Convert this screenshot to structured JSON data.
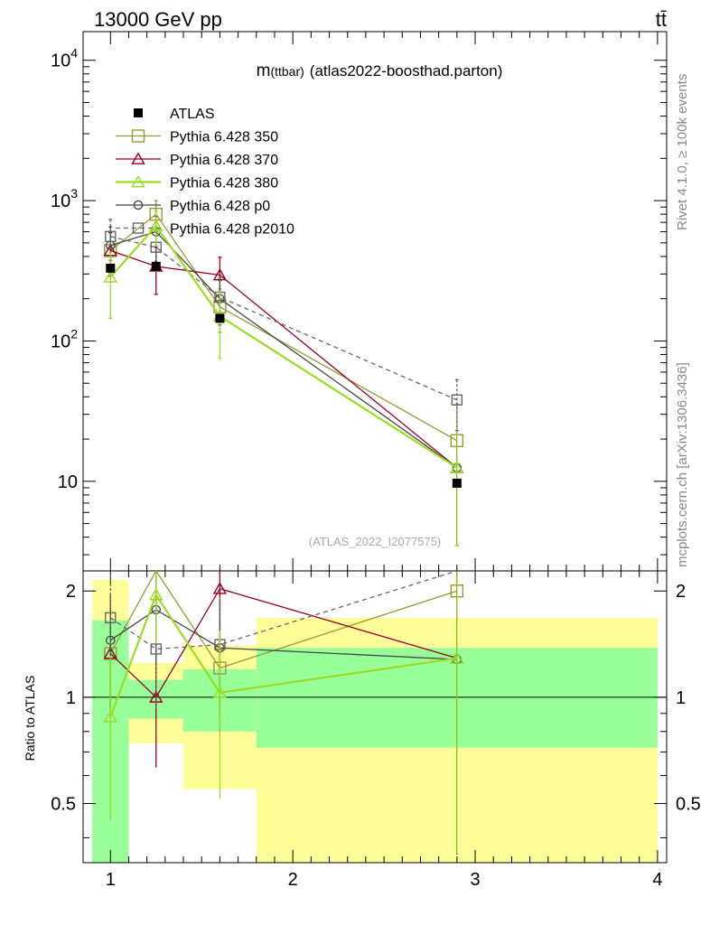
{
  "header": {
    "energy_label": "13000 GeV pp",
    "process_label": "tt̄"
  },
  "side_text": {
    "rivet": "Rivet 4.1.0, ≥ 100k events",
    "mcplots": "mcplots.cern.ch [arXiv:1306.3436]"
  },
  "chart_data": {
    "type": "line",
    "title": "m(ttbar) (atlas2022-boosthad.parton)",
    "title_main": "m",
    "title_sub": "(ttbar)",
    "title_rest": "(atlas2022-boosthad.parton)",
    "analysis_label": "(ATLAS_2022_I2077575)",
    "yscale": "log",
    "xlim": [
      0.85,
      4.05
    ],
    "ylim": [
      2.3,
      16000
    ],
    "x_ticks": [
      1,
      2,
      3,
      4
    ],
    "x_tick_labels": [
      "1",
      "2",
      "3",
      "4"
    ],
    "y_ticks": [
      10,
      100,
      1000,
      10000
    ],
    "y_tick_labels": [
      "10",
      "10",
      "10",
      "10"
    ],
    "y_tick_exponents": [
      "",
      "2",
      "3",
      "4"
    ],
    "ratio": {
      "ylabel": "Ratio to ATLAS",
      "ylim": [
        0.34,
        2.28
      ],
      "y_ticks": [
        0.5,
        1,
        2
      ],
      "y_tick_labels": [
        "0.5",
        "1",
        "2"
      ],
      "bands": [
        {
          "x0": 0.9,
          "x1": 1.1,
          "green": [
            0.3,
            1.65
          ],
          "yellow": [
            0.3,
            2.15
          ]
        },
        {
          "x0": 1.1,
          "x1": 1.4,
          "green": [
            0.87,
            1.12
          ],
          "yellow": [
            0.74,
            1.25
          ]
        },
        {
          "x0": 1.4,
          "x1": 1.8,
          "green": [
            0.8,
            1.2
          ],
          "yellow": [
            0.55,
            1.4
          ]
        },
        {
          "x0": 1.8,
          "x1": 4.0,
          "green": [
            0.72,
            1.38
          ],
          "yellow": [
            0.3,
            1.68
          ]
        }
      ]
    },
    "legend": {
      "position": "top-left"
    },
    "series": [
      {
        "name": "ATLAS",
        "marker": "square-filled",
        "color": "#000000",
        "dashed": false,
        "x": [
          1.0,
          1.25,
          1.6,
          2.9
        ],
        "y": [
          330,
          340,
          145,
          9.7
        ],
        "err_lo": [
          0,
          0,
          0,
          0
        ],
        "err_hi": [
          0,
          0,
          0,
          0
        ],
        "ratio": [
          1,
          1,
          1,
          1
        ]
      },
      {
        "name": "Pythia 6.428 350",
        "marker": "square-open",
        "color": "#999933",
        "dashed": false,
        "x": [
          1.0,
          1.25,
          1.6,
          2.9
        ],
        "y": [
          440,
          800,
          175,
          19.5
        ],
        "err_lo": [
          150,
          200,
          60,
          16
        ],
        "err_hi": [
          150,
          200,
          60,
          16
        ],
        "ratio": [
          1.33,
          2.35,
          1.21,
          2.0
        ]
      },
      {
        "name": "Pythia 6.428 370",
        "marker": "triangle-open",
        "color": "#990022",
        "dashed": false,
        "x": [
          1.0,
          1.25,
          1.6,
          2.9
        ],
        "y": [
          440,
          340,
          295,
          12.5
        ],
        "err_lo": [
          150,
          125,
          100,
          9
        ],
        "err_hi": [
          150,
          125,
          100,
          9
        ],
        "ratio": [
          1.33,
          1.0,
          2.03,
          1.29
        ]
      },
      {
        "name": "Pythia 6.428 380",
        "marker": "triangle-open",
        "color": "#99dd22",
        "dashed": false,
        "x": [
          1.0,
          1.25,
          1.6,
          2.9
        ],
        "y": [
          285,
          660,
          150,
          12.5
        ],
        "err_lo": [
          140,
          180,
          75,
          9
        ],
        "err_hi": [
          140,
          180,
          75,
          9
        ],
        "ratio": [
          0.88,
          1.95,
          1.03,
          1.29
        ]
      },
      {
        "name": "Pythia 6.428 p0",
        "marker": "circle-open",
        "color": "#444444",
        "dashed": false,
        "x": [
          1.0,
          1.25,
          1.6,
          2.9
        ],
        "y": [
          480,
          600,
          200,
          12.5
        ],
        "err_lo": [
          170,
          170,
          70,
          9
        ],
        "err_hi": [
          170,
          170,
          70,
          9
        ],
        "ratio": [
          1.45,
          1.77,
          1.38,
          1.28
        ]
      },
      {
        "name": "Pythia 6.428 p2010",
        "marker": "square-open",
        "color": "#666666",
        "dashed": true,
        "x": [
          1.0,
          1.25,
          1.6,
          2.9
        ],
        "y": [
          555,
          465,
          205,
          38
        ],
        "err_lo": [
          180,
          150,
          75,
          15
        ],
        "err_hi": [
          180,
          150,
          75,
          15
        ],
        "ratio": [
          1.68,
          1.37,
          1.41,
          3.9
        ]
      }
    ]
  }
}
